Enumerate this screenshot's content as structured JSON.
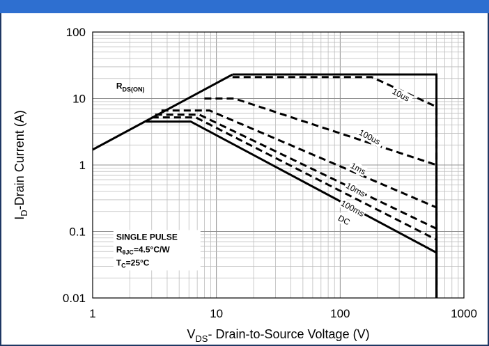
{
  "chart_data": {
    "type": "line",
    "scale": "log-log",
    "xlabel_main": "V",
    "xlabel_sub": "DS",
    "xlabel_rest": "- Drain-to-Source Voltage (V)",
    "ylabel_main": "I",
    "ylabel_sub": "D",
    "ylabel_rest": "-Drain Current (A)",
    "xlim": [
      1,
      1000
    ],
    "ylim": [
      0.01,
      100
    ],
    "x_ticks": [
      "1",
      "10",
      "100",
      "1000"
    ],
    "y_ticks": [
      "100",
      "10",
      "1",
      "0.1",
      "0.01"
    ],
    "grid": true,
    "rdson_label_main": "R",
    "rdson_label_sub": "DS(ON)",
    "annotation": {
      "line1": "SINGLE PULSE",
      "line2_main": "R",
      "line2_sub": "θJC",
      "line2_rest": "=4.5°C/W",
      "line3_main": "T",
      "line3_sub": "C",
      "line3_rest": "=25°C"
    },
    "series": [
      {
        "name": "RDS(ON)",
        "style": "solid",
        "x": [
          1,
          13.5
        ],
        "y": [
          1.7,
          23
        ]
      },
      {
        "name": "10us",
        "style": "solid",
        "x": [
          13.5,
          600,
          600
        ],
        "y": [
          23,
          23,
          0.01
        ]
      },
      {
        "name": "DC",
        "style": "solid",
        "x": [
          2.7,
          6.2,
          600,
          600
        ],
        "y": [
          4.5,
          4.5,
          0.048,
          0.01
        ]
      },
      {
        "name": "",
        "style": "dashed",
        "x": [
          13.5,
          28,
          180,
          600,
          600
        ],
        "y": [
          21,
          21,
          21,
          7.5,
          0.01
        ]
      },
      {
        "name": "100us",
        "style": "dashed",
        "x": [
          8,
          14,
          600,
          600
        ],
        "y": [
          10,
          10,
          1.0,
          0.01
        ]
      },
      {
        "name": "1ms",
        "style": "dashed",
        "x": [
          3.6,
          8.8,
          600,
          600
        ],
        "y": [
          6.6,
          6.6,
          0.23,
          0.01
        ]
      },
      {
        "name": "10ms",
        "style": "dashed",
        "x": [
          3.2,
          7.3,
          600,
          600
        ],
        "y": [
          5.7,
          5.7,
          0.11,
          0.01
        ]
      },
      {
        "name": "100ms",
        "style": "dashed",
        "x": [
          3.0,
          6.8,
          600,
          600
        ],
        "y": [
          5.2,
          5.2,
          0.075,
          0.01
        ]
      }
    ],
    "curve_labels": [
      {
        "text": "10us",
        "x": 260,
        "y": 12
      },
      {
        "text": "100us",
        "x": 140,
        "y": 2.9
      },
      {
        "text": "1ms",
        "x": 120,
        "y": 0.92
      },
      {
        "text": "10ms",
        "x": 110,
        "y": 0.46
      },
      {
        "text": "100ms",
        "x": 100,
        "y": 0.25
      },
      {
        "text": "DC",
        "x": 95,
        "y": 0.15
      }
    ]
  }
}
